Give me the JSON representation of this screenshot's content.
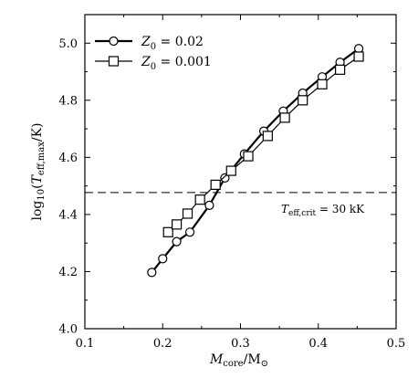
{
  "chart_data": {
    "type": "line",
    "title": "",
    "xlabel": "M_core/M_⊙",
    "ylabel": "log10(T_eff,max/K)",
    "xlim": [
      0.1,
      0.5
    ],
    "ylim": [
      4.0,
      5.1
    ],
    "xticks": [
      0.1,
      0.2,
      0.3,
      0.4,
      0.5
    ],
    "xtick_labels": [
      "0.1",
      "0.2",
      "0.3",
      "0.4",
      "0.5"
    ],
    "yticks": [
      4.0,
      4.2,
      4.4,
      4.6,
      4.8,
      5.0
    ],
    "ytick_labels": [
      "4.0",
      "4.2",
      "4.4",
      "4.6",
      "4.8",
      "5.0"
    ],
    "grid": false,
    "legend_position": "top-left",
    "series": [
      {
        "name": "Z0 = 0.02",
        "marker": "circle",
        "x": [
          0.186,
          0.2,
          0.218,
          0.235,
          0.26,
          0.28,
          0.305,
          0.33,
          0.355,
          0.38,
          0.405,
          0.428,
          0.452
        ],
        "y": [
          4.197,
          4.245,
          4.305,
          4.338,
          4.432,
          4.528,
          4.612,
          4.692,
          4.762,
          4.825,
          4.882,
          4.933,
          4.981
        ]
      },
      {
        "name": "Z0 = 0.001",
        "marker": "square",
        "x": [
          0.207,
          0.218,
          0.232,
          0.248,
          0.268,
          0.288,
          0.31,
          0.335,
          0.357,
          0.38,
          0.405,
          0.428,
          0.452
        ],
        "y": [
          4.338,
          4.365,
          4.403,
          4.452,
          4.504,
          4.553,
          4.604,
          4.675,
          4.739,
          4.8,
          4.856,
          4.907,
          4.953
        ]
      }
    ],
    "reference_line": {
      "y": 4.477,
      "style": "dashed",
      "label": "T_eff,crit = 30 kK"
    },
    "colors": {
      "line": "#000000",
      "marker_fill": "#ffffff",
      "background": "#ffffff"
    }
  }
}
